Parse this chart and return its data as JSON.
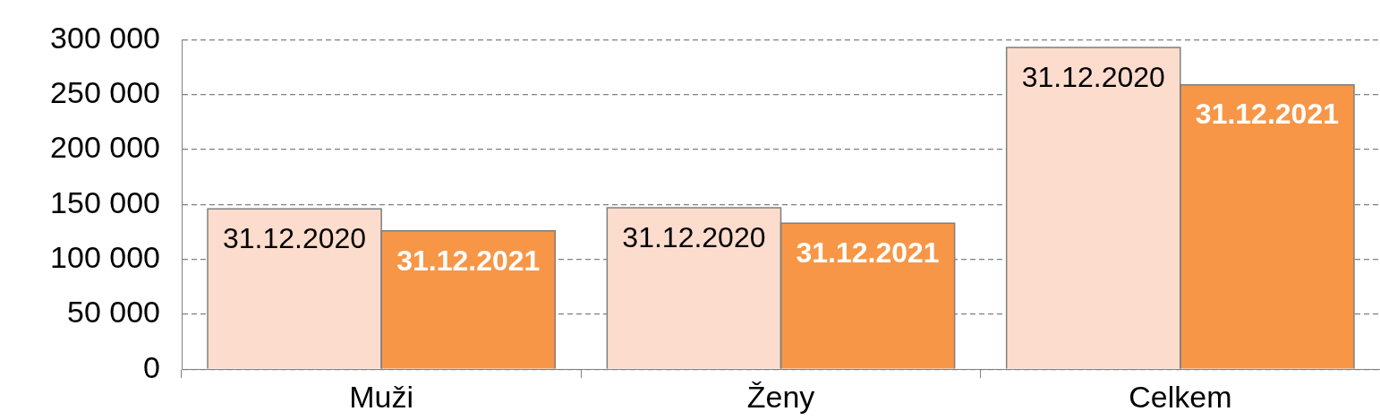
{
  "chart_data": {
    "type": "bar",
    "categories": [
      "Muži",
      "Ženy",
      "Celkem"
    ],
    "series": [
      {
        "name": "31.12.2020",
        "color": "#fcdccd",
        "values": [
          146000,
          147000,
          293000
        ]
      },
      {
        "name": "31.12.2021",
        "color": "#f79646",
        "values": [
          126000,
          133000,
          259000
        ]
      }
    ],
    "ylim": [
      0,
      300000
    ],
    "yticks": [
      {
        "value": 0,
        "label": "0"
      },
      {
        "value": 50000,
        "label": "50 000"
      },
      {
        "value": 100000,
        "label": "100 000"
      },
      {
        "value": 150000,
        "label": "150 000"
      },
      {
        "value": 200000,
        "label": "200 000"
      },
      {
        "value": 250000,
        "label": "250 000"
      },
      {
        "value": 300000,
        "label": "300 000"
      }
    ],
    "grid": "y",
    "legend": false
  }
}
